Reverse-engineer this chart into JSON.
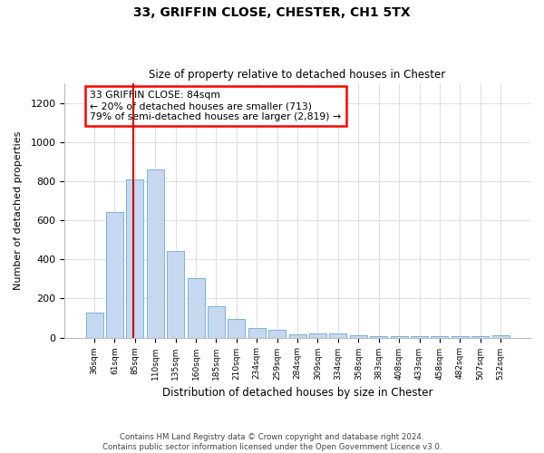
{
  "title_line1": "33, GRIFFIN CLOSE, CHESTER, CH1 5TX",
  "title_line2": "Size of property relative to detached houses in Chester",
  "xlabel": "Distribution of detached houses by size in Chester",
  "ylabel": "Number of detached properties",
  "bar_labels": [
    "36sqm",
    "61sqm",
    "85sqm",
    "110sqm",
    "135sqm",
    "160sqm",
    "185sqm",
    "210sqm",
    "234sqm",
    "259sqm",
    "284sqm",
    "309sqm",
    "334sqm",
    "358sqm",
    "383sqm",
    "408sqm",
    "433sqm",
    "458sqm",
    "482sqm",
    "507sqm",
    "532sqm"
  ],
  "bar_values": [
    130,
    640,
    810,
    860,
    445,
    305,
    160,
    95,
    50,
    40,
    18,
    20,
    20,
    12,
    5,
    5,
    5,
    5,
    5,
    5,
    12
  ],
  "bar_color": "#c5d8f0",
  "bar_edge_color": "#6aaad4",
  "vline_color": "#cc0000",
  "vline_x_index": 1.92,
  "annotation_text": "33 GRIFFIN CLOSE: 84sqm\n← 20% of detached houses are smaller (713)\n79% of semi-detached houses are larger (2,819) →",
  "ylim": [
    0,
    1300
  ],
  "yticks": [
    0,
    200,
    400,
    600,
    800,
    1000,
    1200
  ],
  "footer_line1": "Contains HM Land Registry data © Crown copyright and database right 2024.",
  "footer_line2": "Contains public sector information licensed under the Open Government Licence v3.0.",
  "bg_color": "#ffffff",
  "plot_bg_color": "#ffffff",
  "grid_color": "#e0e0e0"
}
